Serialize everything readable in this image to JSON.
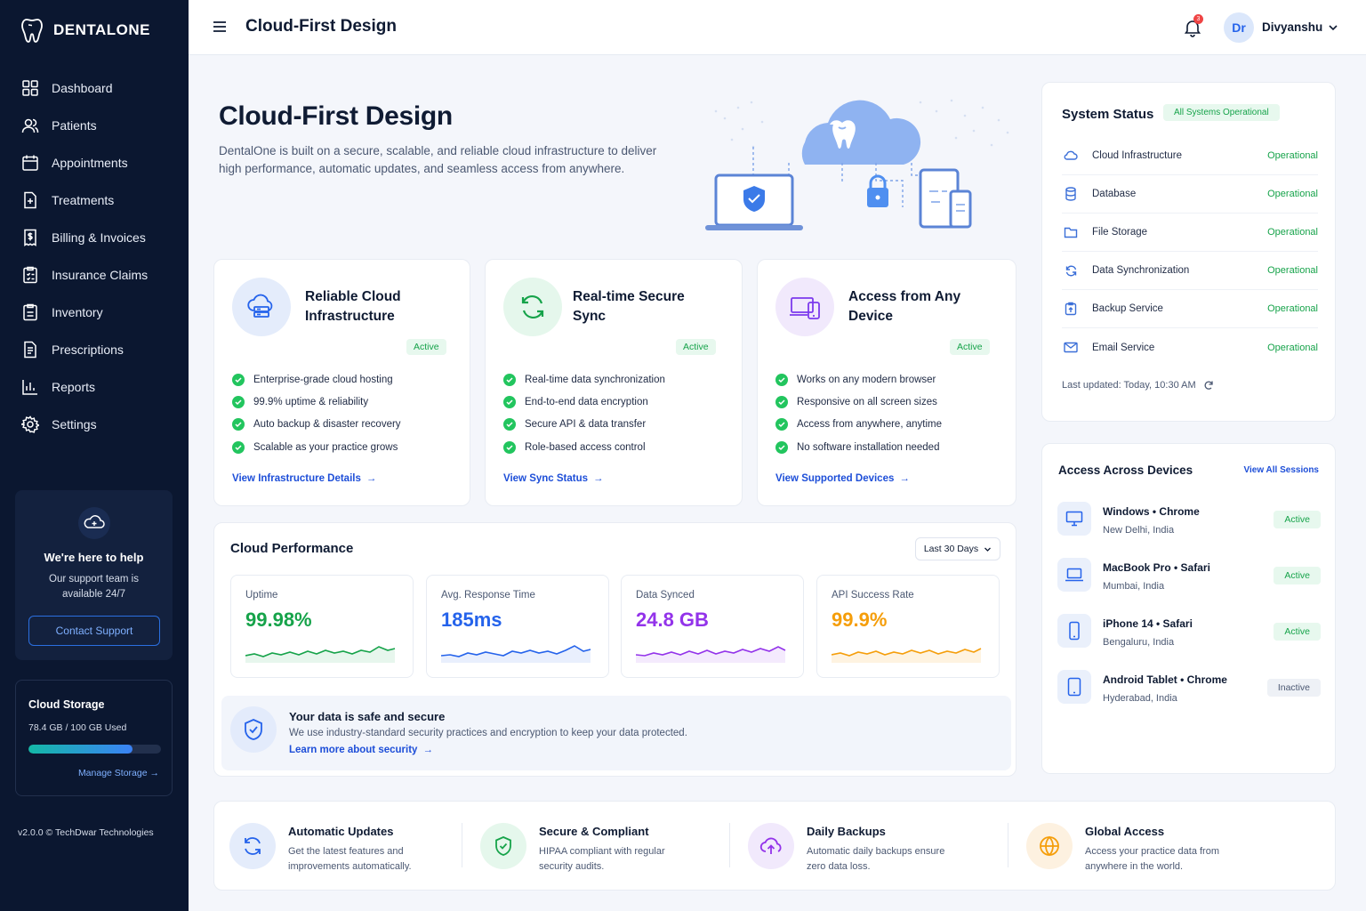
{
  "brand": {
    "name": "DENTALONE"
  },
  "sidebar": {
    "items": [
      {
        "label": "Dashboard",
        "icon": "grid-icon"
      },
      {
        "label": "Patients",
        "icon": "users-icon"
      },
      {
        "label": "Appointments",
        "icon": "calendar-icon"
      },
      {
        "label": "Treatments",
        "icon": "treatment-icon"
      },
      {
        "label": "Billing & Invoices",
        "icon": "invoice-icon"
      },
      {
        "label": "Insurance Claims",
        "icon": "claims-icon"
      },
      {
        "label": "Inventory",
        "icon": "inventory-icon"
      },
      {
        "label": "Prescriptions",
        "icon": "prescription-icon"
      },
      {
        "label": "Reports",
        "icon": "reports-icon"
      },
      {
        "label": "Settings",
        "icon": "gear-icon"
      }
    ],
    "help": {
      "title": "We're here to help",
      "subtitle": "Our support team is available 24/7",
      "button": "Contact Support"
    },
    "storage": {
      "title": "Cloud Storage",
      "used": "78.4 GB / 100 GB Used",
      "fraction": 0.784,
      "link": "Manage Storage"
    },
    "version": "v2.0.0 © TechDwar Technologies"
  },
  "topbar": {
    "title": "Cloud-First Design",
    "notifications": "3",
    "avatar": "Dr",
    "user": "Divyanshu"
  },
  "hero": {
    "title": "Cloud-First Design",
    "description": "DentalOne is built on a secure, scalable, and reliable cloud infrastructure to deliver high performance, automatic updates, and seamless access from anywhere."
  },
  "features": [
    {
      "title": "Reliable Cloud Infrastructure",
      "badge": "Active",
      "items": [
        "Enterprise-grade cloud hosting",
        "99.9% uptime & reliability",
        "Auto backup & disaster recovery",
        "Scalable as your practice grows"
      ],
      "link": "View Infrastructure Details",
      "color": "#2563eb"
    },
    {
      "title": "Real-time Secure Sync",
      "badge": "Active",
      "items": [
        "Real-time data synchronization",
        "End-to-end data encryption",
        "Secure API & data transfer",
        "Role-based access control"
      ],
      "link": "View Sync Status",
      "color": "#16a34a"
    },
    {
      "title": "Access from Any Device",
      "badge": "Active",
      "items": [
        "Works on any modern browser",
        "Responsive on all screen sizes",
        "Access from anywhere, anytime",
        "No software installation needed"
      ],
      "link": "View Supported Devices",
      "color": "#7c3aed"
    }
  ],
  "performance": {
    "title": "Cloud Performance",
    "range": "Last 30 Days",
    "metrics": [
      {
        "label": "Uptime",
        "value": "99.98%",
        "color": "#16a34a"
      },
      {
        "label": "Avg. Response Time",
        "value": "185ms",
        "color": "#2563eb"
      },
      {
        "label": "Data Synced",
        "value": "24.8 GB",
        "color": "#9333ea"
      },
      {
        "label": "API Success Rate",
        "value": "99.9%",
        "color": "#f59e0b"
      }
    ],
    "secure": {
      "title": "Your data is safe and secure",
      "desc": "We use industry-standard security practices and encryption to keep your data protected.",
      "link": "Learn more about security"
    }
  },
  "system_status": {
    "title": "System Status",
    "badge": "All Systems Operational",
    "rows": [
      {
        "name": "Cloud Infrastructure",
        "status": "Operational",
        "icon": "cloud-icon"
      },
      {
        "name": "Database",
        "status": "Operational",
        "icon": "database-icon"
      },
      {
        "name": "File Storage",
        "status": "Operational",
        "icon": "folder-icon"
      },
      {
        "name": "Data Synchronization",
        "status": "Operational",
        "icon": "sync-icon"
      },
      {
        "name": "Backup Service",
        "status": "Operational",
        "icon": "backup-icon"
      },
      {
        "name": "Email Service",
        "status": "Operational",
        "icon": "mail-icon"
      }
    ],
    "updated": "Last updated: Today, 10:30 AM"
  },
  "devices": {
    "title": "Access Across Devices",
    "link": "View All Sessions",
    "rows": [
      {
        "name": "Windows • Chrome",
        "location": "New Delhi, India",
        "status": "Active",
        "icon": "monitor-icon"
      },
      {
        "name": "MacBook Pro • Safari",
        "location": "Mumbai, India",
        "status": "Active",
        "icon": "laptop-icon"
      },
      {
        "name": "iPhone 14 • Safari",
        "location": "Bengaluru, India",
        "status": "Active",
        "icon": "phone-icon"
      },
      {
        "name": "Android Tablet • Chrome",
        "location": "Hyderabad, India",
        "status": "Inactive",
        "icon": "tablet-icon"
      }
    ]
  },
  "bottom": [
    {
      "title": "Automatic Updates",
      "desc": "Get the latest features and improvements automatically.",
      "icon": "refresh-icon",
      "color": "#2563eb"
    },
    {
      "title": "Secure & Compliant",
      "desc": "HIPAA compliant with regular security audits.",
      "icon": "shield-check-icon",
      "color": "#16a34a"
    },
    {
      "title": "Daily Backups",
      "desc": "Automatic daily backups ensure zero data loss.",
      "icon": "cloud-upload-icon",
      "color": "#9333ea"
    },
    {
      "title": "Global Access",
      "desc": "Access your practice data from anywhere in the world.",
      "icon": "globe-icon",
      "color": "#f59e0b"
    }
  ]
}
